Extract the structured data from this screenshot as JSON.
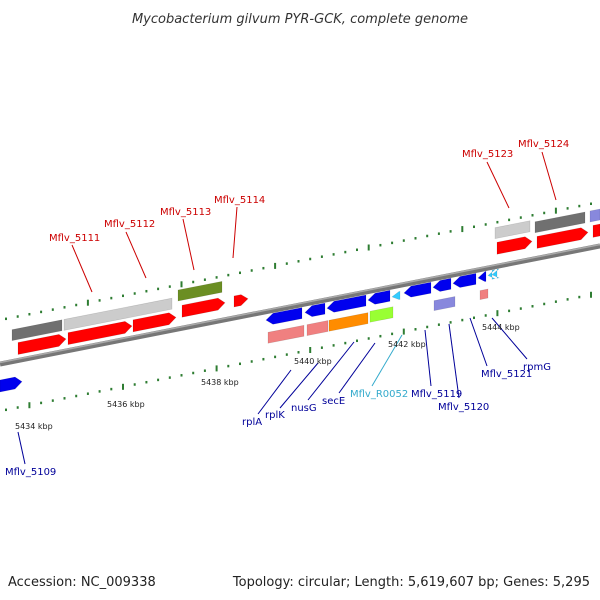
{
  "title": "Mycobacterium gilvum PYR-GCK, complete genome",
  "footer": {
    "accession": "Accession: NC_009338",
    "stats": "Topology: circular; Length: 5,619,607 bp; Genes: 5,295"
  },
  "colors": {
    "backbone": "#888888",
    "label_red": "#cc0000",
    "label_blue": "#000099",
    "label_cyan": "#33aacc",
    "tick_green": "#2e7d32",
    "gene_red": "#ff0000",
    "gene_blue": "#0000ee",
    "gene_gray_dark": "#707070",
    "gene_gray_light": "#cccccc",
    "gene_olive": "#6b8e23",
    "gene_pink": "#f08080",
    "gene_orange": "#ff8c00",
    "gene_lime": "#99ff33",
    "gene_lavender": "#8888dd",
    "gene_cyan": "#33ccff"
  },
  "kbp_labels": [
    "5434 kbp",
    "5436 kbp",
    "5438 kbp",
    "5440 kbp",
    "5442 kbp",
    "5444 kbp"
  ],
  "gene_labels": [
    {
      "text": "Mflv_5111",
      "color": "red"
    },
    {
      "text": "Mflv_5112",
      "color": "red"
    },
    {
      "text": "Mflv_5113",
      "color": "red"
    },
    {
      "text": "Mflv_5114",
      "color": "red"
    },
    {
      "text": "Mflv_5123",
      "color": "red"
    },
    {
      "text": "Mflv_5124",
      "color": "red"
    },
    {
      "text": "rplA",
      "color": "blue"
    },
    {
      "text": "rplK",
      "color": "blue"
    },
    {
      "text": "nusG",
      "color": "blue"
    },
    {
      "text": "secE",
      "color": "blue"
    },
    {
      "text": "Mflv_R0052",
      "color": "cyan"
    },
    {
      "text": "Mflv_5119",
      "color": "blue"
    },
    {
      "text": "Mflv_5120",
      "color": "blue"
    },
    {
      "text": "Mflv_5121",
      "color": "blue"
    },
    {
      "text": "rpmG",
      "color": "blue"
    },
    {
      "text": "Mflv_5109",
      "color": "blue"
    }
  ]
}
